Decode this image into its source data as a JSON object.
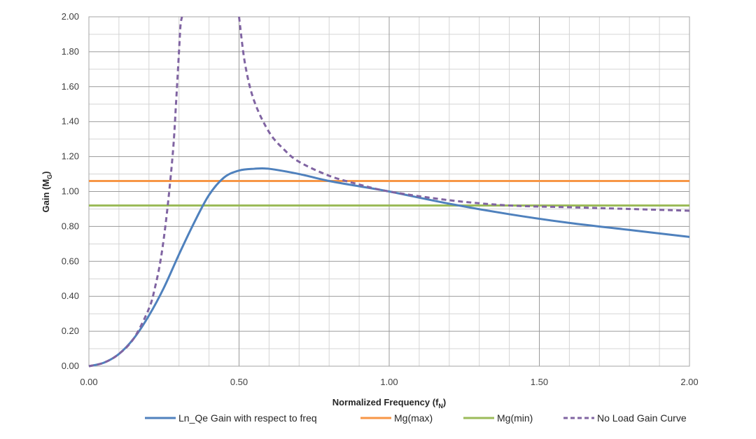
{
  "chart_data": {
    "type": "line",
    "xlabel": "Normalized Frequency (fN)",
    "xlabel_main": "Normalized Frequency (f",
    "xlabel_sub": "N",
    "xlabel_end": ")",
    "ylabel_main": "Gain (M",
    "ylabel_sub": "G",
    "ylabel_end": ")",
    "xlim": [
      0,
      2
    ],
    "ylim": [
      0,
      2
    ],
    "x_ticks": [
      "0.00",
      "0.50",
      "1.00",
      "1.50",
      "2.00"
    ],
    "y_ticks": [
      "0.00",
      "0.20",
      "0.40",
      "0.60",
      "0.80",
      "1.00",
      "1.20",
      "1.40",
      "1.60",
      "1.80",
      "2.00"
    ],
    "grid": true,
    "legend_position": "bottom",
    "series": [
      {
        "name": "Ln_Qe Gain with respect to freq",
        "color": "#4f81bd",
        "style": "solid",
        "x": [
          0.0,
          0.05,
          0.1,
          0.15,
          0.2,
          0.25,
          0.3,
          0.35,
          0.4,
          0.45,
          0.5,
          0.55,
          0.6,
          0.7,
          0.8,
          0.9,
          1.0,
          1.2,
          1.4,
          1.6,
          1.8,
          2.0
        ],
        "y": [
          0.0,
          0.02,
          0.07,
          0.16,
          0.29,
          0.45,
          0.64,
          0.82,
          0.98,
          1.08,
          1.12,
          1.13,
          1.13,
          1.1,
          1.06,
          1.03,
          1.0,
          0.93,
          0.87,
          0.82,
          0.78,
          0.74
        ]
      },
      {
        "name": "Mg(max)",
        "color": "#f79646",
        "style": "solid",
        "x": [
          0.0,
          2.0
        ],
        "y": [
          1.06,
          1.06
        ]
      },
      {
        "name": "Mg(min)",
        "color": "#9bbb59",
        "style": "solid",
        "x": [
          0.0,
          2.0
        ],
        "y": [
          0.92,
          0.92
        ]
      },
      {
        "name": "No Load Gain Curve",
        "color": "#8064a2",
        "style": "dashed",
        "segments": [
          {
            "x": [
              0.0,
              0.05,
              0.1,
              0.15,
              0.2,
              0.22,
              0.24,
              0.26,
              0.28,
              0.29,
              0.3,
              0.305,
              0.31
            ],
            "y": [
              0.0,
              0.02,
              0.07,
              0.16,
              0.33,
              0.45,
              0.62,
              0.88,
              1.23,
              1.5,
              1.8,
              1.95,
              2.0
            ]
          },
          {
            "x": [
              0.5,
              0.52,
              0.55,
              0.6,
              0.65,
              0.7,
              0.8,
              0.9,
              1.0,
              1.2,
              1.4,
              1.6,
              1.8,
              2.0
            ],
            "y": [
              2.0,
              1.73,
              1.52,
              1.34,
              1.24,
              1.17,
              1.09,
              1.04,
              1.0,
              0.95,
              0.92,
              0.91,
              0.9,
              0.89
            ]
          }
        ]
      }
    ]
  }
}
